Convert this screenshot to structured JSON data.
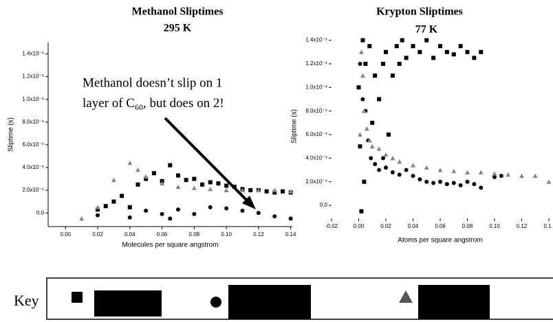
{
  "chart_data": [
    {
      "type": "scatter",
      "title": "Methanol Sliptimes",
      "subtitle": "295 K",
      "x_label": "Molecules per square angstrom",
      "y_label": "Sliptime (s)",
      "annotation": [
        "Methanol doesn’t slip on 1",
        "layer of C",
        "60",
        ", but does on 2!"
      ],
      "xlim": [
        -0.0108,
        0.141
      ],
      "ylim": [
        -1.2e-09,
        1.5e-08
      ],
      "xticks": [
        {
          "value": 0,
          "label": "0.00"
        },
        0.02,
        0.04,
        0.06,
        0.08,
        {
          "value": 0.1,
          "label": "0.10"
        },
        0.12,
        0.14
      ],
      "yticks": [
        {
          "value": 0,
          "label": "0.0"
        },
        {
          "value": 2e-09,
          "label": "2.0x10⁻⁹"
        },
        {
          "value": 4e-09,
          "label": "4.0x10⁻⁹"
        },
        {
          "value": 6e-09,
          "label": "6.0x10⁻⁹"
        },
        {
          "value": 8e-09,
          "label": "8.0x10⁻⁹"
        },
        {
          "value": 1e-08,
          "label": "1.0x10⁻⁸"
        },
        {
          "value": 1.2e-08,
          "label": "1.2x10⁻⁸"
        },
        {
          "value": 1.4e-08,
          "label": "1.4x10⁻⁸"
        }
      ],
      "series": [
        {
          "marker": "square",
          "color": "#000000",
          "x": [
            0.02,
            0.025,
            0.03,
            0.035,
            0.04,
            0.045,
            0.05,
            0.055,
            0.06,
            0.065,
            0.07,
            0.075,
            0.08,
            0.085,
            0.09,
            0.095,
            0.1,
            0.105,
            0.11,
            0.115,
            0.12,
            0.125,
            0.13,
            0.135,
            0.14
          ],
          "values": [
            3e-10,
            6e-10,
            1e-09,
            1.5e-09,
            5e-10,
            2.5e-09,
            3e-09,
            3.5e-09,
            2.8e-09,
            4.2e-09,
            3.3e-09,
            2.9e-09,
            3e-09,
            2.5e-09,
            2.7e-09,
            2.6e-09,
            2.4e-09,
            2.3e-09,
            2.1e-09,
            2e-09,
            2e-09,
            1.9e-09,
            1.8e-09,
            1.9e-09,
            1.8e-09
          ]
        },
        {
          "marker": "circle",
          "color": "#000000",
          "x": [
            0.02,
            0.04,
            0.05,
            0.06,
            0.065,
            0.07,
            0.08,
            0.09,
            0.1,
            0.11,
            0.12,
            0.13,
            0.14
          ],
          "values": [
            -2e-10,
            -4e-10,
            2e-10,
            -1e-10,
            -5e-10,
            3e-10,
            -1e-10,
            5e-10,
            4e-10,
            2e-10,
            0,
            -3e-10,
            -5e-10
          ]
        },
        {
          "marker": "triangle",
          "color": "#888888",
          "x": [
            0.01,
            0.02,
            0.03,
            0.04,
            0.045,
            0.05,
            0.06,
            0.07,
            0.08,
            0.09,
            0.1,
            0.11,
            0.12,
            0.13,
            0.14
          ],
          "values": [
            -5e-10,
            5e-10,
            2.9e-09,
            4.4e-09,
            3.8e-09,
            3.2e-09,
            2.6e-09,
            2.3e-09,
            2.2e-09,
            2.1e-09,
            2e-09,
            2e-09,
            2e-09,
            2e-09,
            1.9e-09
          ]
        }
      ]
    },
    {
      "type": "scatter",
      "title": "Krypton Sliptimes",
      "subtitle": "77 K",
      "x_label": "Atoms per square angstrom",
      "y_label": "Sliptime (s)",
      "xlim": [
        -0.02,
        0.14
      ],
      "ylim": [
        -1.1e-09,
        1.45e-08
      ],
      "xticks": [
        {
          "value": -0.02,
          "label": "-0.02"
        },
        {
          "value": 0,
          "label": "0.00"
        },
        0.02,
        0.04,
        0.06,
        0.08,
        {
          "value": 0.1,
          "label": "0.10"
        },
        0.12,
        {
          "value": 0.14,
          "label": "0.1"
        }
      ],
      "yticks": [
        {
          "value": 0,
          "label": "0.0"
        },
        {
          "value": 2e-09,
          "label": "2.0x10⁻⁹"
        },
        {
          "value": 4e-09,
          "label": "4.0x10⁻⁹"
        },
        {
          "value": 6e-09,
          "label": "6.0x10⁻⁹"
        },
        {
          "value": 8e-09,
          "label": "8.0x10⁻⁹"
        },
        {
          "value": 1e-08,
          "label": "1.0x10⁻⁸"
        },
        {
          "value": 1.2e-08,
          "label": "1.2x10⁻⁸"
        },
        {
          "value": 1.4e-08,
          "label": "1.4x10⁻⁸"
        }
      ],
      "series": [
        {
          "marker": "square",
          "color": "#000000",
          "x": [
            0.0,
            0.001,
            0.002,
            0.003,
            0.004,
            0.005,
            0.008,
            0.01,
            0.012,
            0.015,
            0.018,
            0.02,
            0.022,
            0.025,
            0.028,
            0.03,
            0.032,
            0.035,
            0.04,
            0.045,
            0.05,
            0.055,
            0.06,
            0.065,
            0.07,
            0.075,
            0.08,
            0.085,
            0.09
          ],
          "values": [
            1e-08,
            5e-09,
            -5e-10,
            1.4e-08,
            2e-09,
            1.2e-08,
            1.35e-08,
            7e-09,
            1.1e-08,
            9e-09,
            1.2e-08,
            1.3e-08,
            6e-09,
            1.1e-08,
            1.35e-08,
            1.2e-08,
            1.4e-08,
            1.25e-08,
            1.35e-08,
            1.3e-08,
            1.4e-08,
            1.25e-08,
            1.35e-08,
            1.3e-08,
            1.28e-08,
            1.35e-08,
            1.3e-08,
            1.25e-08,
            1.3e-08
          ]
        },
        {
          "marker": "circle",
          "color": "#000000",
          "x": [
            0.001,
            0.003,
            0.005,
            0.007,
            0.009,
            0.012,
            0.015,
            0.018,
            0.02,
            0.025,
            0.03,
            0.035,
            0.04,
            0.045,
            0.05,
            0.055,
            0.06,
            0.065,
            0.07,
            0.075,
            0.08,
            0.085,
            0.09,
            0.1,
            0.105
          ],
          "values": [
            1.2e-08,
            9e-09,
            8e-09,
            5.5e-09,
            4e-09,
            3.5e-09,
            3e-09,
            4e-09,
            3.2e-09,
            2.8e-09,
            2.6e-09,
            3e-09,
            2.5e-09,
            2.2e-09,
            2e-09,
            1.9e-09,
            2e-09,
            1.8e-09,
            1.9e-09,
            1.7e-09,
            2e-09,
            1.8e-09,
            1.5e-09,
            2.4e-09,
            2.5e-09
          ]
        },
        {
          "marker": "triangle",
          "color": "#888888",
          "x": [
            0.001,
            0.002,
            0.003,
            0.004,
            0.006,
            0.008,
            0.01,
            0.015,
            0.02,
            0.025,
            0.03,
            0.04,
            0.05,
            0.06,
            0.07,
            0.08,
            0.09,
            0.1,
            0.11,
            0.12,
            0.13,
            0.14
          ],
          "values": [
            6e-09,
            1.3e-08,
            1.1e-08,
            8e-09,
            6.5e-09,
            5.5e-09,
            5e-09,
            4.8e-09,
            4.3e-09,
            4e-09,
            3.7e-09,
            3.4e-09,
            3.2e-09,
            3e-09,
            2.9e-09,
            2.8e-09,
            2.8e-09,
            2.7e-09,
            2.6e-09,
            2.5e-09,
            2.5e-09,
            2e-09
          ]
        }
      ]
    }
  ],
  "key_label": "Key"
}
